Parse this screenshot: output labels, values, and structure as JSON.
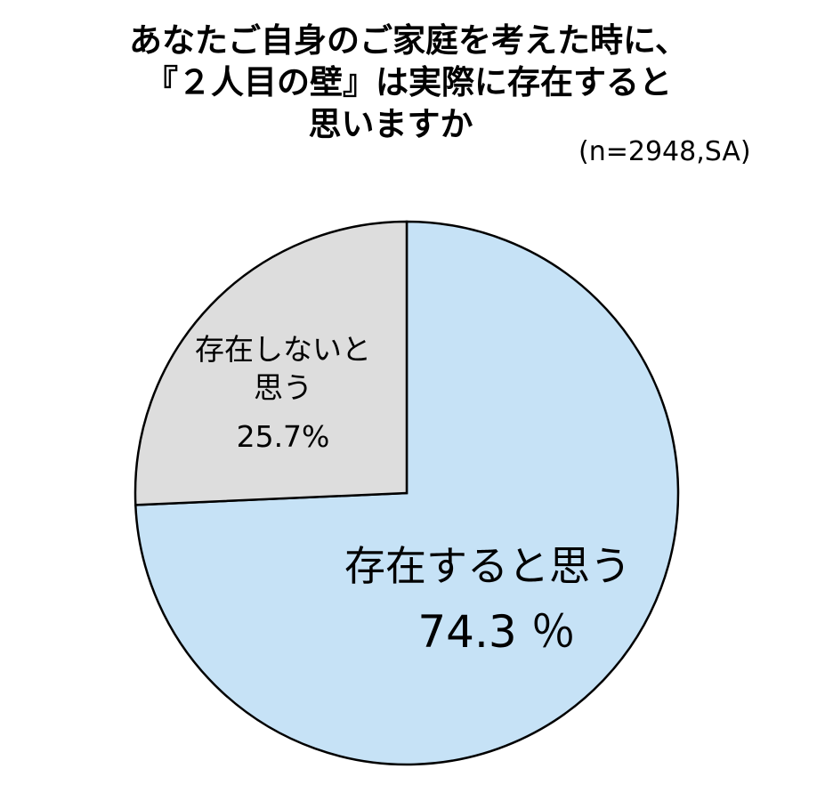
{
  "title": {
    "line1": "あなたご自身のご家庭を考えた時に、",
    "line2": "『２人目の壁』は実際に存在すると",
    "line3": "思いますか"
  },
  "sample_note": "(n=2948,SA)",
  "colors": {
    "exists": "#c6e2f6",
    "not_exists": "#dddddd",
    "stroke": "#000000"
  },
  "chart_data": {
    "type": "pie",
    "title": "あなたご自身のご家庭を考えた時に、『２人目の壁』は実際に存在すると思いますか",
    "note": "(n=2948,SA)",
    "slices": [
      {
        "label": "存在すると思う",
        "value": 74.3,
        "value_label": "74.3 ％"
      },
      {
        "label": "存在しないと思う",
        "value": 25.7,
        "value_label": "25.7%"
      }
    ],
    "start_angle": "12 o'clock",
    "direction": "clockwise",
    "unit": "%"
  }
}
